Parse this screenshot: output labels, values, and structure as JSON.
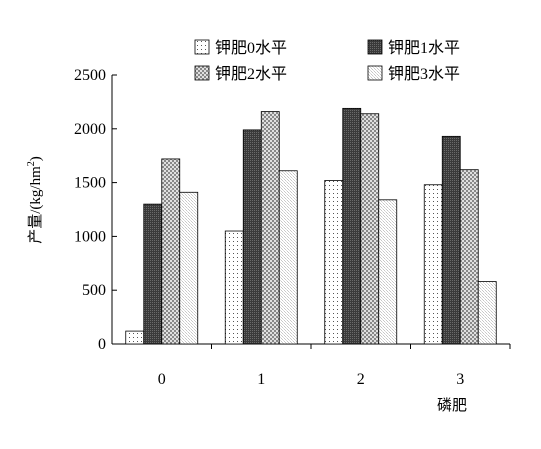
{
  "chart_data": {
    "type": "bar",
    "categories": [
      "0",
      "1",
      "2",
      "3"
    ],
    "xlabel": "磷肥",
    "ylabel": "产量/(kg/hm",
    "ylabel_sup": "2",
    "ylabel_close": ")",
    "ylim": [
      0,
      2500
    ],
    "yticks": [
      0,
      500,
      1000,
      1500,
      2000,
      2500
    ],
    "grid": false,
    "legend_position": "top",
    "series": [
      {
        "name": "钾肥0水平",
        "values": [
          120,
          1050,
          1520,
          1480
        ],
        "pattern": "dots"
      },
      {
        "name": "钾肥1水平",
        "values": [
          1300,
          1990,
          2190,
          1930
        ],
        "pattern": "dark"
      },
      {
        "name": "钾肥2水平",
        "values": [
          1720,
          2160,
          2140,
          1620
        ],
        "pattern": "checker"
      },
      {
        "name": "钾肥3水平",
        "values": [
          1410,
          1610,
          1340,
          580
        ],
        "pattern": "light"
      }
    ]
  }
}
